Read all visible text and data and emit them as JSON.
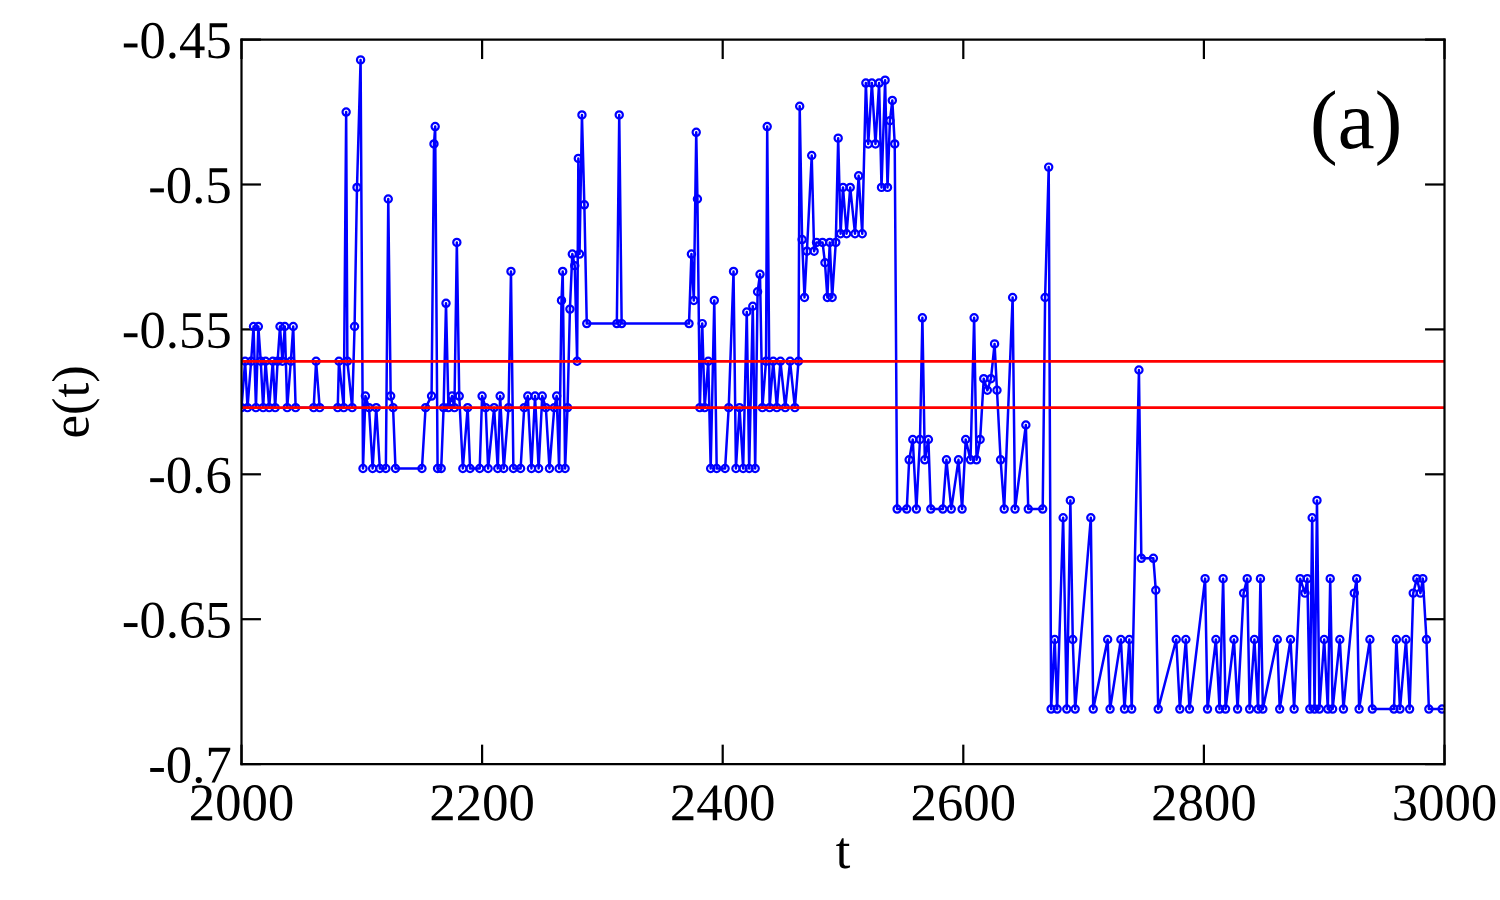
{
  "chart_data": {
    "type": "line",
    "xlabel": "t",
    "ylabel": "e(t)",
    "annotations": [
      "(a)"
    ],
    "xlim": [
      2000,
      3000
    ],
    "xticks": [
      2000,
      2200,
      2400,
      2600,
      2800,
      3000
    ],
    "ylim": [
      -0.7,
      -0.45
    ],
    "yticks": [
      -0.7,
      -0.65,
      -0.6,
      -0.55,
      -0.5,
      -0.45
    ],
    "grid": false,
    "legend": false,
    "marker": "circle",
    "line_style": "solid",
    "ref_lines": [
      {
        "axis": "y",
        "value": -0.561,
        "color": "#ff0000",
        "line_style": "solid"
      },
      {
        "axis": "y",
        "value": -0.577,
        "color": "#ff0000",
        "line_style": "solid"
      }
    ],
    "series": [
      {
        "color": "#0000ff",
        "x": [
          2000,
          2003,
          2005,
          2008,
          2010,
          2012,
          2014,
          2016,
          2018,
          2020,
          2023,
          2026,
          2028,
          2030,
          2032,
          2034,
          2036,
          2038,
          2041,
          2043,
          2045,
          2060,
          2062,
          2065,
          2080,
          2081,
          2085,
          2087,
          2088,
          2092,
          2094,
          2096,
          2099,
          2101,
          2103,
          2106,
          2109,
          2112,
          2115,
          2120,
          2122,
          2124,
          2126,
          2128,
          2150,
          2153,
          2158,
          2160,
          2161,
          2163,
          2166,
          2168,
          2170,
          2172,
          2175,
          2177,
          2179,
          2181,
          2184,
          2188,
          2190,
          2198,
          2200,
          2203,
          2205,
          2210,
          2213,
          2215,
          2218,
          2222,
          2224,
          2226,
          2232,
          2235,
          2238,
          2241,
          2244,
          2247,
          2250,
          2253,
          2256,
          2260,
          2262,
          2264,
          2266,
          2267,
          2269,
          2271,
          2273,
          2275,
          2277,
          2279,
          2280,
          2281,
          2283,
          2285,
          2287,
          2312,
          2314,
          2316,
          2372,
          2374,
          2376,
          2378,
          2379,
          2381,
          2383,
          2385,
          2388,
          2390,
          2393,
          2395,
          2402,
          2405,
          2409,
          2411,
          2414,
          2417,
          2420,
          2422,
          2425,
          2427,
          2429,
          2431,
          2433,
          2436,
          2437,
          2439,
          2442,
          2445,
          2448,
          2452,
          2456,
          2460,
          2463,
          2464,
          2466,
          2468,
          2470,
          2474,
          2476,
          2478,
          2483,
          2485,
          2487,
          2489,
          2491,
          2494,
          2496,
          2498,
          2500,
          2503,
          2506,
          2510,
          2513,
          2516,
          2519,
          2521,
          2524,
          2527,
          2530,
          2532,
          2535,
          2537,
          2539,
          2541,
          2543,
          2545,
          2553,
          2555,
          2558,
          2561,
          2564,
          2566,
          2568,
          2571,
          2573,
          2583,
          2586,
          2590,
          2596,
          2599,
          2602,
          2606,
          2609,
          2611,
          2614,
          2617,
          2620,
          2623,
          2626,
          2628,
          2631,
          2634,
          2641,
          2643,
          2652,
          2654,
          2666,
          2668,
          2671,
          2673,
          2676,
          2678,
          2683,
          2686,
          2689,
          2691,
          2693,
          2706,
          2708,
          2720,
          2722,
          2731,
          2734,
          2738,
          2740,
          2746,
          2748,
          2758,
          2760,
          2762,
          2777,
          2780,
          2785,
          2788,
          2801,
          2803,
          2810,
          2813,
          2816,
          2818,
          2825,
          2828,
          2833,
          2836,
          2838,
          2842,
          2845,
          2847,
          2849,
          2861,
          2863,
          2872,
          2875,
          2880,
          2884,
          2886,
          2888,
          2890,
          2892,
          2894,
          2896,
          2900,
          2903,
          2905,
          2907,
          2913,
          2916,
          2925,
          2927,
          2929,
          2938,
          2940,
          2958,
          2960,
          2963,
          2968,
          2971,
          2974,
          2977,
          2980,
          2982,
          2985,
          2987,
          2998
        ],
        "values": [
          -0.577,
          -0.561,
          -0.577,
          -0.561,
          -0.549,
          -0.577,
          -0.549,
          -0.561,
          -0.577,
          -0.561,
          -0.577,
          -0.561,
          -0.577,
          -0.561,
          -0.549,
          -0.561,
          -0.549,
          -0.577,
          -0.561,
          -0.549,
          -0.577,
          -0.577,
          -0.561,
          -0.577,
          -0.577,
          -0.561,
          -0.577,
          -0.475,
          -0.561,
          -0.577,
          -0.549,
          -0.501,
          -0.457,
          -0.598,
          -0.573,
          -0.577,
          -0.598,
          -0.577,
          -0.598,
          -0.598,
          -0.505,
          -0.573,
          -0.577,
          -0.598,
          -0.598,
          -0.577,
          -0.573,
          -0.486,
          -0.48,
          -0.598,
          -0.598,
          -0.577,
          -0.541,
          -0.577,
          -0.573,
          -0.577,
          -0.52,
          -0.573,
          -0.598,
          -0.577,
          -0.598,
          -0.598,
          -0.573,
          -0.577,
          -0.598,
          -0.577,
          -0.598,
          -0.573,
          -0.598,
          -0.577,
          -0.53,
          -0.598,
          -0.598,
          -0.577,
          -0.573,
          -0.598,
          -0.573,
          -0.598,
          -0.573,
          -0.577,
          -0.598,
          -0.577,
          -0.573,
          -0.598,
          -0.54,
          -0.53,
          -0.598,
          -0.577,
          -0.543,
          -0.524,
          -0.528,
          -0.561,
          -0.491,
          -0.524,
          -0.476,
          -0.507,
          -0.548,
          -0.548,
          -0.476,
          -0.548,
          -0.548,
          -0.524,
          -0.54,
          -0.482,
          -0.505,
          -0.577,
          -0.548,
          -0.577,
          -0.561,
          -0.598,
          -0.54,
          -0.598,
          -0.598,
          -0.577,
          -0.53,
          -0.598,
          -0.577,
          -0.598,
          -0.544,
          -0.598,
          -0.542,
          -0.598,
          -0.537,
          -0.531,
          -0.577,
          -0.561,
          -0.48,
          -0.577,
          -0.561,
          -0.577,
          -0.561,
          -0.577,
          -0.561,
          -0.577,
          -0.561,
          -0.473,
          -0.519,
          -0.539,
          -0.523,
          -0.49,
          -0.523,
          -0.52,
          -0.52,
          -0.527,
          -0.539,
          -0.52,
          -0.539,
          -0.52,
          -0.484,
          -0.517,
          -0.501,
          -0.517,
          -0.501,
          -0.517,
          -0.497,
          -0.517,
          -0.465,
          -0.486,
          -0.465,
          -0.486,
          -0.465,
          -0.501,
          -0.464,
          -0.501,
          -0.478,
          -0.471,
          -0.486,
          -0.612,
          -0.612,
          -0.595,
          -0.588,
          -0.612,
          -0.588,
          -0.546,
          -0.595,
          -0.588,
          -0.612,
          -0.612,
          -0.595,
          -0.612,
          -0.595,
          -0.612,
          -0.588,
          -0.595,
          -0.546,
          -0.595,
          -0.588,
          -0.567,
          -0.571,
          -0.567,
          -0.555,
          -0.571,
          -0.595,
          -0.612,
          -0.539,
          -0.612,
          -0.583,
          -0.612,
          -0.612,
          -0.539,
          -0.494,
          -0.681,
          -0.657,
          -0.681,
          -0.615,
          -0.681,
          -0.609,
          -0.657,
          -0.681,
          -0.615,
          -0.681,
          -0.657,
          -0.681,
          -0.657,
          -0.681,
          -0.657,
          -0.681,
          -0.564,
          -0.629,
          -0.629,
          -0.64,
          -0.681,
          -0.657,
          -0.681,
          -0.657,
          -0.681,
          -0.636,
          -0.681,
          -0.657,
          -0.681,
          -0.636,
          -0.681,
          -0.657,
          -0.681,
          -0.641,
          -0.636,
          -0.681,
          -0.657,
          -0.681,
          -0.636,
          -0.681,
          -0.657,
          -0.681,
          -0.657,
          -0.681,
          -0.636,
          -0.641,
          -0.636,
          -0.681,
          -0.615,
          -0.681,
          -0.609,
          -0.681,
          -0.657,
          -0.681,
          -0.636,
          -0.681,
          -0.657,
          -0.681,
          -0.641,
          -0.636,
          -0.681,
          -0.657,
          -0.681,
          -0.681,
          -0.657,
          -0.681,
          -0.657,
          -0.681,
          -0.641,
          -0.636,
          -0.641,
          -0.636,
          -0.657,
          -0.681,
          -0.681
        ]
      }
    ]
  }
}
